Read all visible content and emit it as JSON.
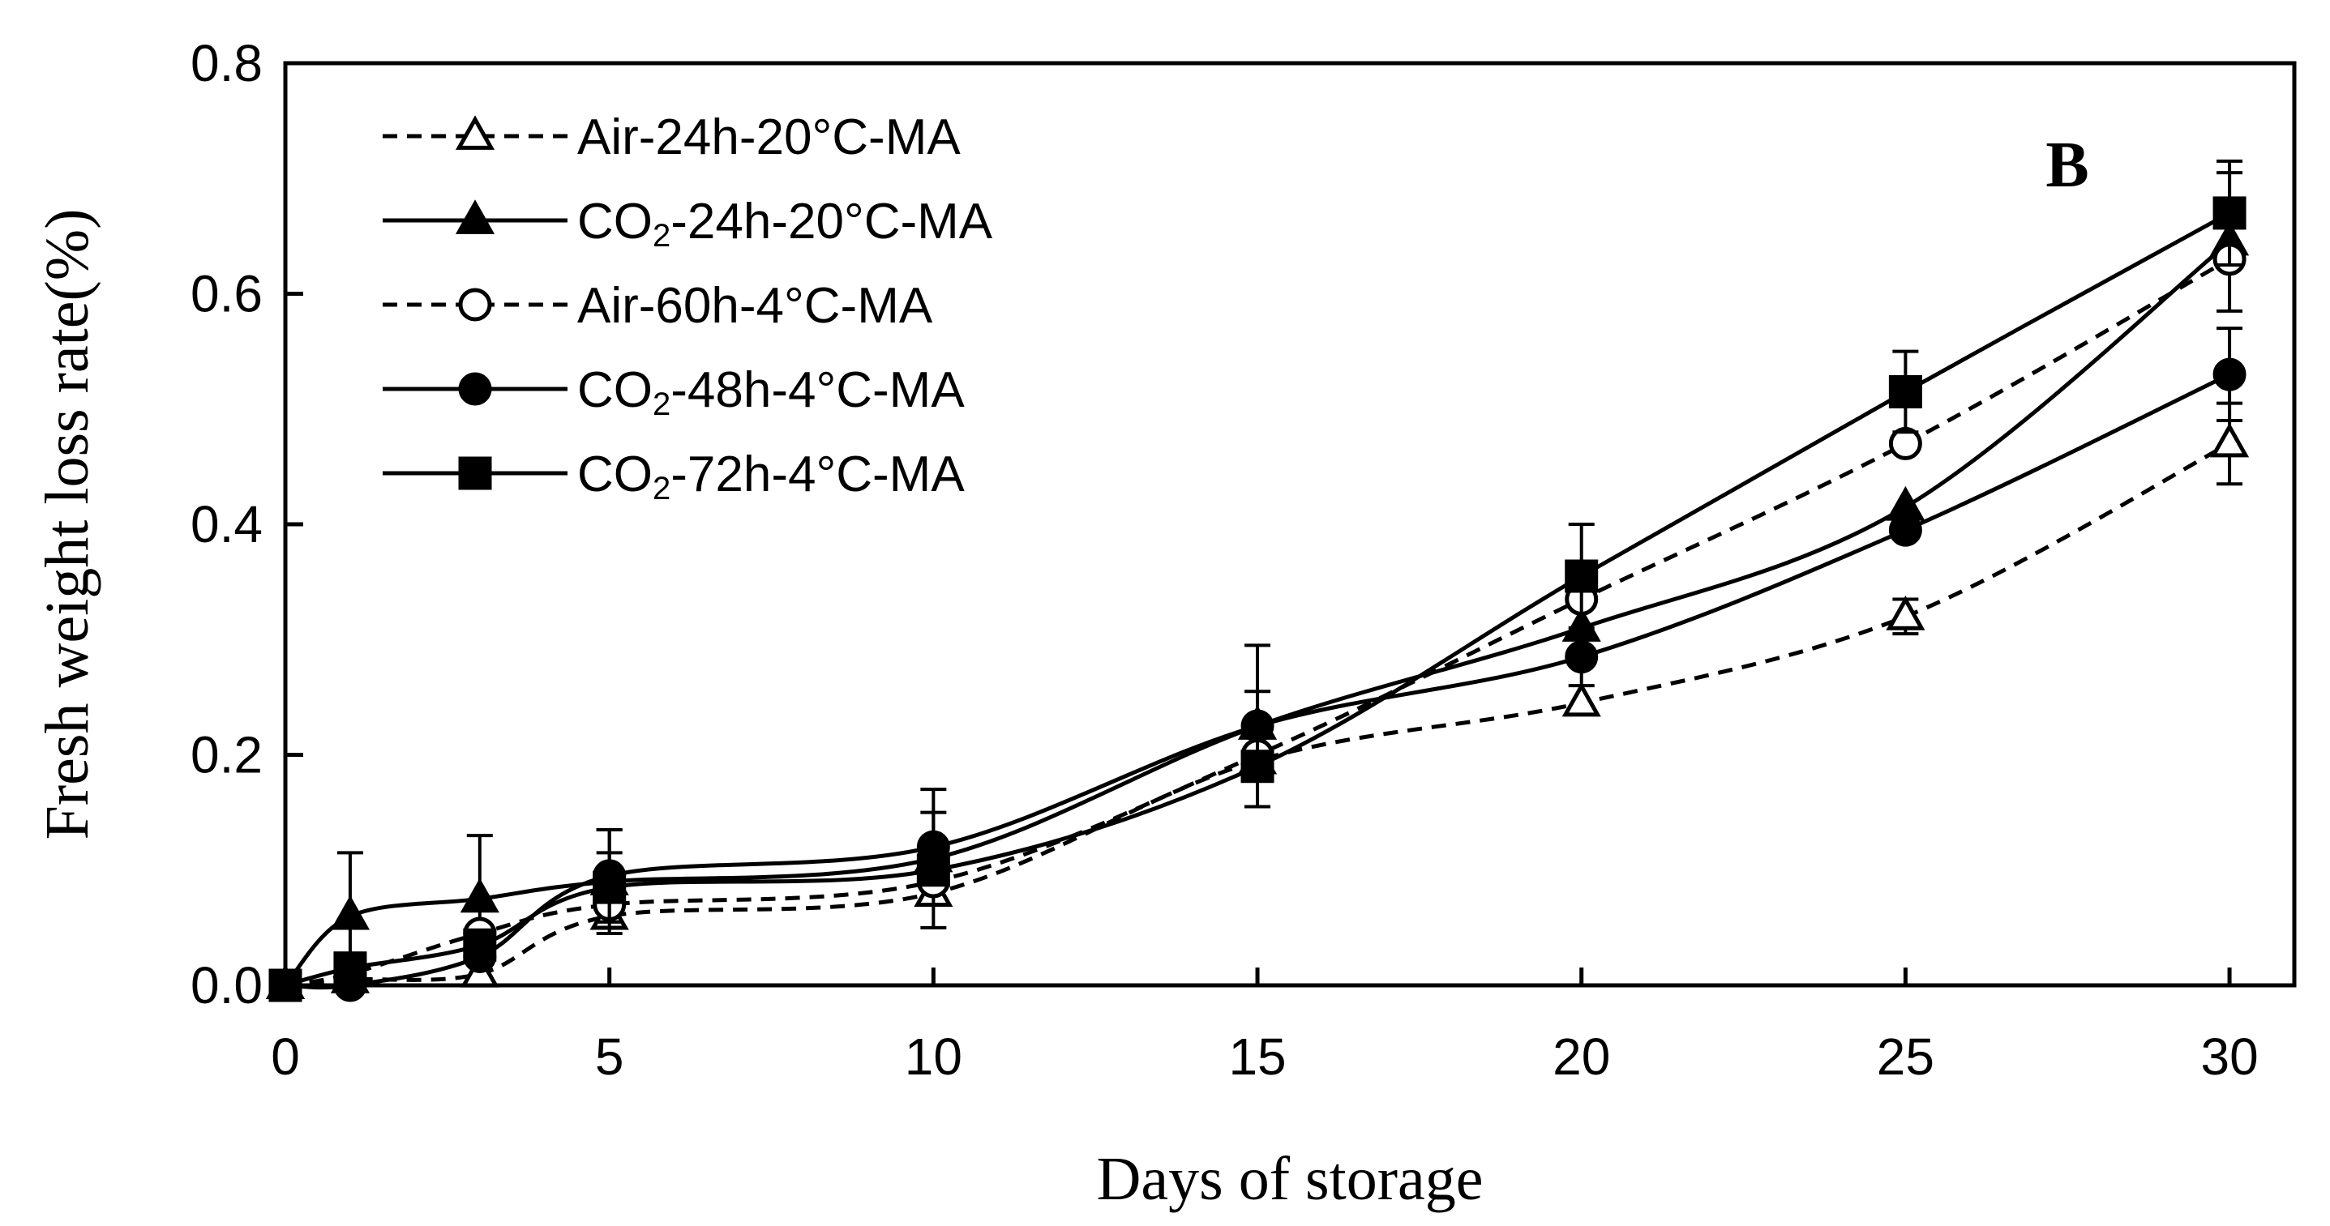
{
  "chart_data": {
    "type": "line",
    "title": "",
    "panel_label": "B",
    "xlabel": "Days of storage",
    "ylabel": "Fresh weight loss rate(%)",
    "xlim": [
      0,
      31
    ],
    "ylim": [
      0,
      0.8
    ],
    "xticks": [
      0,
      5,
      10,
      15,
      20,
      25,
      30
    ],
    "yticks": [
      0.0,
      0.2,
      0.4,
      0.6,
      0.8
    ],
    "ytick_labels": [
      "0.0",
      "0.2",
      "0.4",
      "0.6",
      "0.8"
    ],
    "grid": false,
    "legend_position": "top-left",
    "x": [
      0,
      1,
      3,
      5,
      10,
      15,
      20,
      25,
      30
    ],
    "series": [
      {
        "name": "Air-24h-20°C-MA",
        "legend_parts": [
          "Air-24h-20°C-MA"
        ],
        "line": "dashed",
        "marker": "triangle-open",
        "values": [
          0.0,
          0.005,
          0.01,
          0.06,
          0.08,
          0.195,
          0.245,
          0.32,
          0.47
        ],
        "errors": [
          0.0,
          0.0,
          0.0,
          0.0,
          0.0,
          0.0,
          0.0,
          0.015,
          0.035
        ]
      },
      {
        "name": "CO2-24h-20°C-MA",
        "legend_parts": [
          "CO",
          "2",
          "-24h-20°C-MA"
        ],
        "line": "solid",
        "marker": "triangle-filled",
        "values": [
          0.0,
          0.06,
          0.075,
          0.09,
          0.11,
          0.225,
          0.31,
          0.415,
          0.645
        ],
        "errors": [
          0.0,
          0.055,
          0.055,
          0.045,
          0.06,
          0.07,
          0.05,
          0.0,
          0.06
        ]
      },
      {
        "name": "Air-60h-4°C-MA",
        "legend_parts": [
          "Air-60h-4°C-MA"
        ],
        "line": "dashed",
        "marker": "circle-open",
        "values": [
          0.0,
          0.01,
          0.045,
          0.07,
          0.09,
          0.2,
          0.335,
          0.47,
          0.63
        ],
        "errors": [
          0.0,
          0.0,
          0.0,
          0.0,
          0.0,
          0.0,
          0.0,
          0.0,
          0.0
        ]
      },
      {
        "name": "CO2-48h-4°C-MA",
        "legend_parts": [
          "CO",
          "2",
          "-48h-4°C-MA"
        ],
        "line": "solid",
        "marker": "circle-filled",
        "values": [
          0.0,
          0.0,
          0.025,
          0.095,
          0.12,
          0.225,
          0.285,
          0.395,
          0.53
        ],
        "errors": [
          0.0,
          0.0,
          0.0,
          0.04,
          0.03,
          0.03,
          0.0,
          0.0,
          0.04
        ]
      },
      {
        "name": "CO2-72h-4°C-MA",
        "legend_parts": [
          "CO",
          "2",
          "-72h-4°C-MA"
        ],
        "line": "solid",
        "marker": "square-filled",
        "values": [
          0.0,
          0.015,
          0.035,
          0.085,
          0.1,
          0.19,
          0.355,
          0.515,
          0.67
        ],
        "errors": [
          0.0,
          0.0,
          0.0,
          0.03,
          0.0,
          0.035,
          0.045,
          0.035,
          0.045
        ]
      }
    ]
  }
}
